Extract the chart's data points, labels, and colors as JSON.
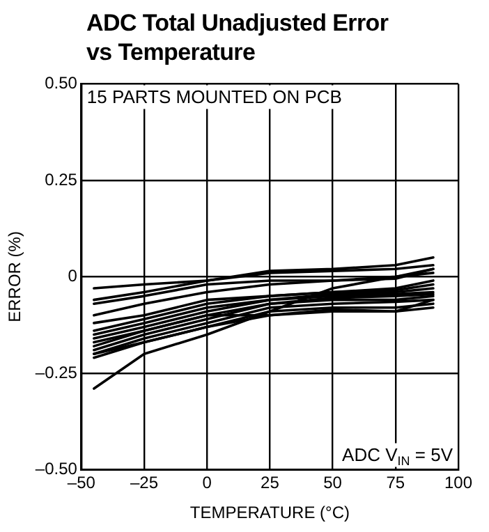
{
  "chart_data": {
    "type": "line",
    "title": "ADC Total Unadjusted Error\nvs Temperature",
    "xlabel": "TEMPERATURE (°C)",
    "ylabel": "ERROR (%)",
    "annotations": [
      "15 PARTS MOUNTED ON PCB",
      "ADC V$_{IN}$ = 5V"
    ],
    "x": [
      -45,
      -25,
      0,
      25,
      50,
      75,
      90
    ],
    "series": [
      {
        "color": "#000000",
        "values": [
          -0.03,
          -0.02,
          -0.01,
          0.015,
          0.02,
          0.03,
          0.05
        ]
      },
      {
        "color": "#000000",
        "values": [
          -0.06,
          -0.04,
          -0.01,
          0.01,
          0.015,
          0.02,
          0.03
        ]
      },
      {
        "color": "#000000",
        "values": [
          -0.07,
          -0.05,
          -0.02,
          -0.01,
          -0.01,
          0,
          0.01
        ]
      },
      {
        "color": "#000000",
        "values": [
          -0.1,
          -0.07,
          -0.04,
          -0.02,
          -0.01,
          -0.005,
          0.02
        ]
      },
      {
        "color": "#000000",
        "values": [
          -0.29,
          -0.2,
          -0.15,
          -0.09,
          -0.03,
          0,
          0.02
        ]
      },
      {
        "color": "#000000",
        "values": [
          -0.12,
          -0.1,
          -0.06,
          -0.05,
          -0.04,
          -0.03,
          -0.01
        ]
      },
      {
        "color": "#000000",
        "values": [
          -0.14,
          -0.11,
          -0.07,
          -0.05,
          -0.04,
          -0.035,
          -0.02
        ]
      },
      {
        "color": "#000000",
        "values": [
          -0.15,
          -0.12,
          -0.08,
          -0.06,
          -0.045,
          -0.04,
          -0.03
        ]
      },
      {
        "color": "#000000",
        "values": [
          -0.16,
          -0.13,
          -0.09,
          -0.06,
          -0.05,
          -0.045,
          -0.04
        ]
      },
      {
        "color": "#000000",
        "values": [
          -0.18,
          -0.14,
          -0.1,
          -0.07,
          -0.055,
          -0.05,
          -0.045
        ]
      },
      {
        "color": "#000000",
        "values": [
          -0.19,
          -0.15,
          -0.11,
          -0.07,
          -0.06,
          -0.06,
          -0.05
        ]
      },
      {
        "color": "#000000",
        "values": [
          -0.2,
          -0.16,
          -0.12,
          -0.08,
          -0.07,
          -0.065,
          -0.06
        ]
      },
      {
        "color": "#000000",
        "values": [
          -0.21,
          -0.17,
          -0.13,
          -0.09,
          -0.08,
          -0.08,
          -0.07
        ]
      },
      {
        "color": "#000000",
        "values": [
          -0.17,
          -0.14,
          -0.1,
          -0.1,
          -0.09,
          -0.09,
          -0.08
        ]
      },
      {
        "color": "#000000",
        "values": [
          -0.2,
          -0.17,
          -0.13,
          -0.1,
          -0.085,
          -0.09,
          -0.06
        ]
      }
    ],
    "xlim": [
      -50,
      100
    ],
    "xticks": [
      {
        "value": -50,
        "label": "–50"
      },
      {
        "value": -25,
        "label": "–25"
      },
      0,
      25,
      50,
      75,
      100
    ],
    "ylim": [
      -0.5,
      0.5
    ],
    "yticks": [
      {
        "value": -0.5,
        "label": "–0.50"
      },
      {
        "value": -0.25,
        "label": "–0.25"
      },
      0,
      {
        "value": 0.25,
        "label": "0.25"
      },
      {
        "value": 0.5,
        "label": "0.50"
      }
    ],
    "grid": true,
    "legend": false,
    "marker": "none",
    "line_style": "solid"
  }
}
